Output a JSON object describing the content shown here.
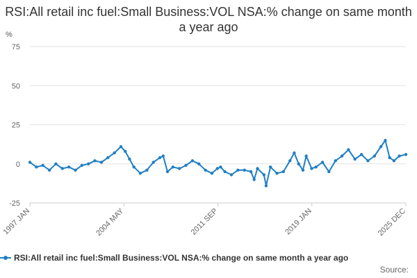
{
  "chart_data": {
    "type": "line",
    "title": "RSI:All retail inc fuel:Small Business:VOL NSA:% change on same month a year ago",
    "ylabel": "%",
    "ylim": [
      -25,
      75
    ],
    "yticks": [
      -25,
      0,
      25,
      50,
      75
    ],
    "x_ticks": [
      "1997 JAN",
      "2004 MAY",
      "2011 SEP",
      "2019 JAN",
      "2025 DEC"
    ],
    "x_range": [
      "1997-01",
      "2025-12"
    ],
    "grid": "horizontal",
    "legend_position": "bottom",
    "color": "#1f7fc4",
    "series": [
      {
        "name": "RSI:All retail inc fuel:Small Business:VOL NSA:% change on same month a year ago",
        "points": [
          [
            "1997-01",
            1
          ],
          [
            "1997-07",
            -2
          ],
          [
            "1998-01",
            -1
          ],
          [
            "1998-07",
            -4
          ],
          [
            "1999-01",
            0
          ],
          [
            "1999-07",
            -3
          ],
          [
            "2000-01",
            -2
          ],
          [
            "2000-07",
            -4
          ],
          [
            "2001-01",
            -1
          ],
          [
            "2001-07",
            0
          ],
          [
            "2002-01",
            2
          ],
          [
            "2002-07",
            1
          ],
          [
            "2003-01",
            4
          ],
          [
            "2003-07",
            7
          ],
          [
            "2004-01",
            11
          ],
          [
            "2004-05",
            8
          ],
          [
            "2004-09",
            3
          ],
          [
            "2005-01",
            -2
          ],
          [
            "2005-07",
            -6
          ],
          [
            "2006-01",
            -4
          ],
          [
            "2006-07",
            1
          ],
          [
            "2007-01",
            4
          ],
          [
            "2007-04",
            5
          ],
          [
            "2007-08",
            -5
          ],
          [
            "2008-01",
            -2
          ],
          [
            "2008-07",
            -3
          ],
          [
            "2009-01",
            -1
          ],
          [
            "2009-07",
            2
          ],
          [
            "2010-01",
            0
          ],
          [
            "2010-07",
            -4
          ],
          [
            "2011-01",
            -6
          ],
          [
            "2011-06",
            -3
          ],
          [
            "2011-09",
            -2
          ],
          [
            "2012-01",
            -5
          ],
          [
            "2012-07",
            -7
          ],
          [
            "2013-01",
            -4
          ],
          [
            "2013-07",
            -4
          ],
          [
            "2014-01",
            -5
          ],
          [
            "2014-04",
            -10
          ],
          [
            "2014-07",
            -3
          ],
          [
            "2015-01",
            -7
          ],
          [
            "2015-03",
            -14
          ],
          [
            "2015-07",
            -2
          ],
          [
            "2016-01",
            -6
          ],
          [
            "2016-07",
            -5
          ],
          [
            "2017-01",
            2
          ],
          [
            "2017-05",
            7
          ],
          [
            "2017-09",
            0
          ],
          [
            "2018-01",
            -4
          ],
          [
            "2018-04",
            5
          ],
          [
            "2018-09",
            -3
          ],
          [
            "2019-01",
            -2
          ],
          [
            "2019-07",
            1
          ],
          [
            "2020-01",
            -5
          ],
          [
            "2020-07",
            2
          ],
          [
            "2021-01",
            5
          ],
          [
            "2021-07",
            9
          ],
          [
            "2022-01",
            3
          ],
          [
            "2022-07",
            6
          ],
          [
            "2023-01",
            2
          ],
          [
            "2023-07",
            5
          ],
          [
            "2024-01",
            11
          ],
          [
            "2024-05",
            15
          ],
          [
            "2024-09",
            4
          ],
          [
            "2025-01",
            2
          ],
          [
            "2025-06",
            5
          ],
          [
            "2025-12",
            6
          ]
        ]
      }
    ]
  },
  "legend": {
    "label": "RSI:All retail inc fuel:Small Business:VOL NSA:% change on same month a year ago"
  },
  "source": {
    "label": "Source:"
  }
}
